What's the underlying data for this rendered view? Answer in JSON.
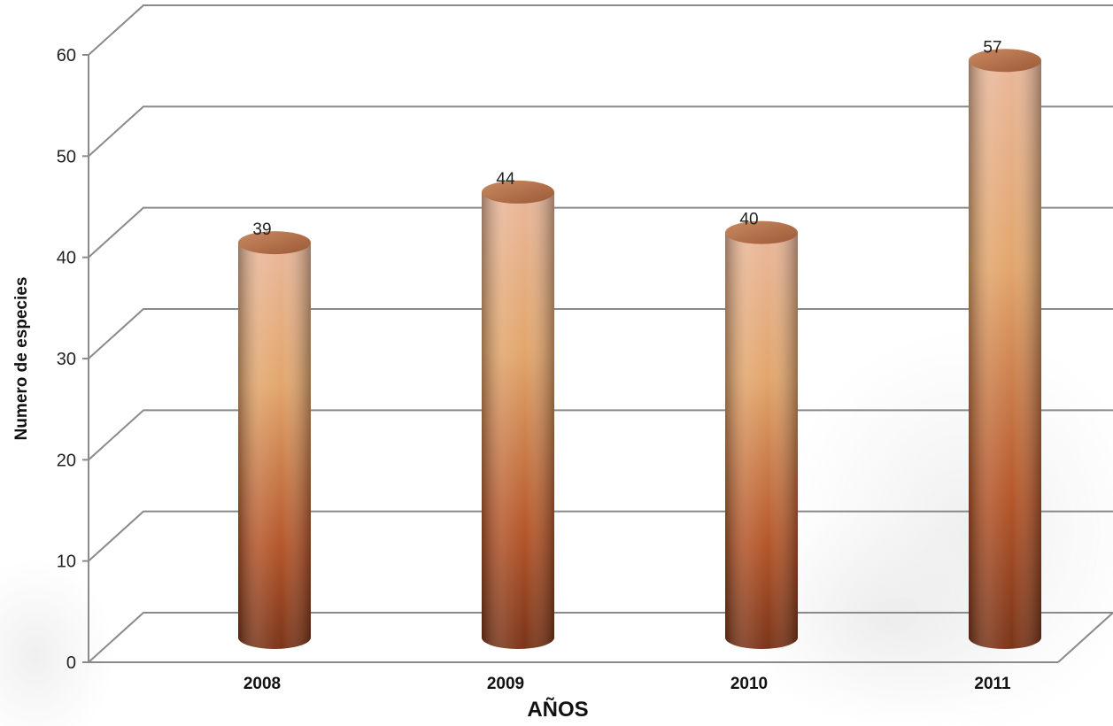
{
  "chart_data": {
    "type": "bar",
    "title": "",
    "xlabel": "AÑOS",
    "ylabel": "Numero de especies",
    "categories": [
      "2008",
      "2009",
      "2010",
      "2011"
    ],
    "values": [
      39,
      44,
      40,
      57
    ],
    "data_labels": [
      "39",
      "44",
      "40",
      "57"
    ],
    "ylim": [
      0,
      60
    ],
    "yticks": [
      0,
      10,
      20,
      30,
      40,
      50,
      60
    ],
    "ytick_labels": [
      "0",
      "10",
      "20",
      "30",
      "40",
      "50",
      "60"
    ],
    "grid": true,
    "legend": "none",
    "style": "3d-cylinder",
    "colors": {
      "bar_top": "#e9b79a",
      "bar_mid": "#e2a66c",
      "bar_low": "#b4562a",
      "bar_bottom": "#7a3418",
      "grid": "#8a8a8a"
    }
  }
}
